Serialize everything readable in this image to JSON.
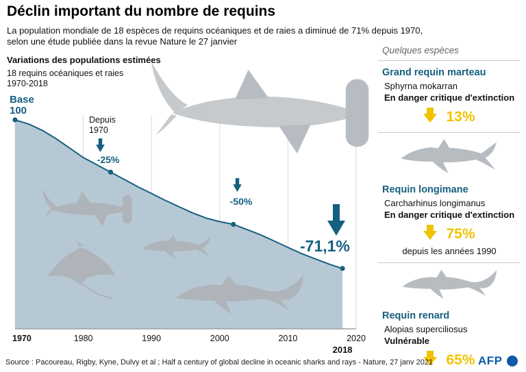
{
  "header": {
    "title": "Déclin important du nombre de requins",
    "subtitle_line1": "La population mondiale de 18 espèces de requins océaniques et de raies a diminué de 71% depuis 1970,",
    "subtitle_line2": "selon une étude publiée dans la revue Nature le 27 janvier"
  },
  "chart": {
    "heading": "Variations des populations estimées",
    "subheading_line1": "18 requins océaniques et raies",
    "subheading_line2": "1970-2018",
    "base_line1": "Base",
    "base_line2": "100",
    "depuis_line1": "Depuis",
    "depuis_line2": "1970",
    "label_25": "-25%",
    "label_50": "-50%",
    "label_final": "-71,1%"
  },
  "chart_data": {
    "type": "area",
    "title": "Variations des populations estimées",
    "subtitle": "18 requins océaniques et raies 1970-2018",
    "x": [
      1970,
      1972,
      1974,
      1976,
      1978,
      1980,
      1982,
      1984,
      1986,
      1988,
      1990,
      1992,
      1994,
      1996,
      1998,
      2000,
      2002,
      2004,
      2006,
      2008,
      2010,
      2012,
      2014,
      2016,
      2018
    ],
    "values": [
      100,
      98,
      95,
      91,
      86.5,
      82,
      78.5,
      75,
      71.5,
      68,
      64.8,
      61.5,
      58.5,
      55.5,
      53,
      51.3,
      50,
      47.5,
      45,
      42,
      39,
      36,
      33.5,
      31,
      28.9
    ],
    "x_ticks": [
      "1970",
      "1980",
      "1990",
      "2000",
      "2010",
      "2020"
    ],
    "x_extra_tick": {
      "label": "2018",
      "x": 2018
    },
    "xlim": [
      1970,
      2020
    ],
    "ylim": [
      0,
      100
    ],
    "grid": "vertical",
    "legend": false,
    "line_color": "#16607f",
    "fill_color": "#b7c8d5",
    "markers": [
      {
        "x": 1970,
        "value": 100,
        "label": "Base 100"
      },
      {
        "x": 1984,
        "value": 75,
        "label": "-25%"
      },
      {
        "x": 2002,
        "value": 50,
        "label": "-50%"
      },
      {
        "x": 2018,
        "value": 28.9,
        "label": "-71,1%"
      }
    ]
  },
  "species_panel": {
    "heading": "Quelques espèces",
    "accent_color": "#16607f",
    "pct_color": "#f0c300",
    "species": [
      {
        "name": "Grand requin marteau",
        "latin": "Sphyrna mokarran",
        "status": "En danger critique d'extinction",
        "pct": "13%",
        "note": ""
      },
      {
        "name": "Requin longimane",
        "latin": "Carcharhinus longimanus",
        "status": "En danger critique d'extinction",
        "pct": "75%",
        "note": "depuis les années 1990"
      },
      {
        "name": "Requin renard",
        "latin": "Alopias superciliosus",
        "status": "Vulnérable",
        "pct": "65%",
        "note": ""
      }
    ]
  },
  "footer": {
    "source": "Source : Pacoureau, Rigby, Kyne, Dulvy et al ; Half a century of global decline in oceanic sharks and rays - Nature, 27 janv 2021",
    "brand": "AFP"
  }
}
